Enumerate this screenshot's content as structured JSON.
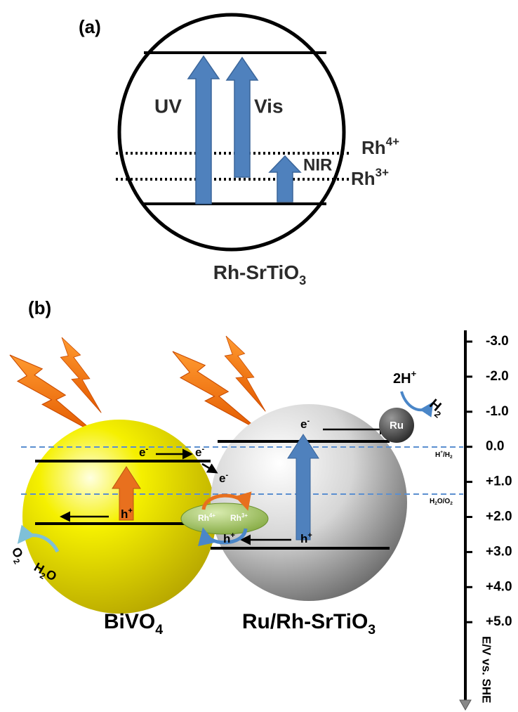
{
  "panel_a": {
    "label": "(a)",
    "arrows": [
      "UV",
      "Vis",
      "NIR"
    ],
    "levels": [
      [
        {
          "text": "Rh"
        },
        {
          "sup": "4+"
        }
      ],
      [
        {
          "text": "Rh"
        },
        {
          "sup": "3+"
        }
      ]
    ],
    "material": [
      {
        "text": "Rh-SrTiO"
      },
      {
        "sub": "3"
      }
    ]
  },
  "panel_b": {
    "label": "(b)",
    "electrons": [
      [
        {
          "text": "e"
        },
        {
          "sup": "-"
        }
      ],
      [
        {
          "text": "e"
        },
        {
          "sup": "-"
        }
      ],
      [
        {
          "text": "e"
        },
        {
          "sup": "-"
        }
      ],
      [
        {
          "text": "e"
        },
        {
          "sup": "-"
        }
      ]
    ],
    "holes": [
      [
        {
          "text": "h"
        },
        {
          "sup": "+"
        }
      ],
      [
        {
          "text": "h"
        },
        {
          "sup": "+"
        }
      ],
      [
        {
          "text": "h"
        },
        {
          "sup": "+"
        }
      ]
    ],
    "mediator": [
      [
        {
          "text": "Rh"
        },
        {
          "sup": "4+"
        }
      ],
      [
        {
          "text": "Rh"
        },
        {
          "sup": "3+"
        }
      ]
    ],
    "cocatalyst": "Ru",
    "reactant_h": [
      {
        "text": "2H"
      },
      {
        "sup": "+"
      }
    ],
    "product_h": [
      {
        "text": "H"
      },
      {
        "sub": "2"
      }
    ],
    "product_o": [
      {
        "text": "O"
      },
      {
        "sub": "2"
      }
    ],
    "reactant_o": [
      {
        "text": "H"
      },
      {
        "sub": "2"
      },
      {
        "text": "O"
      }
    ],
    "materials": [
      [
        {
          "text": "BiVO"
        },
        {
          "sub": "4"
        }
      ],
      [
        {
          "text": "Ru/Rh-SrTiO"
        },
        {
          "sub": "3"
        }
      ]
    ],
    "redox": [
      [
        {
          "text": "H"
        },
        {
          "sup": "+"
        },
        {
          "text": "/H"
        },
        {
          "sub": "2"
        }
      ],
      [
        {
          "text": "H"
        },
        {
          "sub": "2"
        },
        {
          "text": "O/O"
        },
        {
          "sub": "2"
        }
      ]
    ],
    "axis": {
      "ticks": [
        "-3.0",
        "-2.0",
        "-1.0",
        "0.0",
        "+1.0",
        "+2.0",
        "+3.0",
        "+4.0",
        "+5.0"
      ],
      "title": "E/V vs. SHE"
    }
  }
}
